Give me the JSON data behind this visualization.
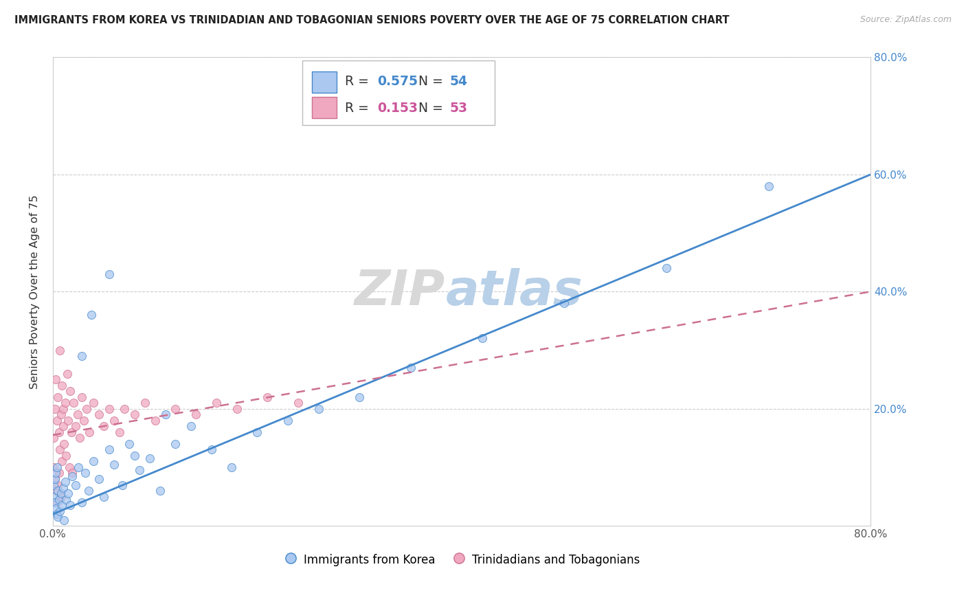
{
  "title": "IMMIGRANTS FROM KOREA VS TRINIDADIAN AND TOBAGONIAN SENIORS POVERTY OVER THE AGE OF 75 CORRELATION CHART",
  "source": "Source: ZipAtlas.com",
  "ylabel": "Seniors Poverty Over the Age of 75",
  "xlim": [
    0.0,
    0.8
  ],
  "ylim": [
    0.0,
    0.8
  ],
  "xticks": [
    0.0,
    0.2,
    0.4,
    0.6,
    0.8
  ],
  "yticks": [
    0.0,
    0.2,
    0.4,
    0.6,
    0.8
  ],
  "xticklabels": [
    "0.0%",
    "",
    "",
    "",
    "80.0%"
  ],
  "right_yticklabels": [
    "80.0%",
    "60.0%",
    "40.0%",
    "20.0%"
  ],
  "right_ytick_vals": [
    0.8,
    0.6,
    0.4,
    0.2
  ],
  "legend_labels": [
    "Immigrants from Korea",
    "Trinidadians and Tobagonians"
  ],
  "R_korea": 0.575,
  "N_korea": 54,
  "R_trinidad": 0.153,
  "N_trinidad": 53,
  "color_korea": "#aac8f0",
  "color_trinidad": "#f0a8c0",
  "line_color_korea": "#4488cc",
  "line_color_trinidad": "#cc7090",
  "korea_x": [
    0.001,
    0.001,
    0.002,
    0.002,
    0.003,
    0.003,
    0.004,
    0.004,
    0.005,
    0.005,
    0.006,
    0.007,
    0.008,
    0.009,
    0.01,
    0.011,
    0.012,
    0.013,
    0.015,
    0.017,
    0.019,
    0.022,
    0.025,
    0.028,
    0.032,
    0.035,
    0.04,
    0.045,
    0.05,
    0.055,
    0.06,
    0.068,
    0.075,
    0.085,
    0.095,
    0.105,
    0.12,
    0.135,
    0.155,
    0.175,
    0.2,
    0.23,
    0.26,
    0.3,
    0.35,
    0.42,
    0.5,
    0.6,
    0.7,
    0.028,
    0.038,
    0.055,
    0.08,
    0.11
  ],
  "korea_y": [
    0.05,
    0.07,
    0.04,
    0.08,
    0.03,
    0.09,
    0.02,
    0.1,
    0.015,
    0.06,
    0.045,
    0.025,
    0.055,
    0.035,
    0.065,
    0.01,
    0.075,
    0.045,
    0.055,
    0.035,
    0.085,
    0.07,
    0.1,
    0.04,
    0.09,
    0.06,
    0.11,
    0.08,
    0.05,
    0.13,
    0.105,
    0.07,
    0.14,
    0.095,
    0.115,
    0.06,
    0.14,
    0.17,
    0.13,
    0.1,
    0.16,
    0.18,
    0.2,
    0.22,
    0.27,
    0.32,
    0.38,
    0.44,
    0.58,
    0.29,
    0.36,
    0.43,
    0.12,
    0.19
  ],
  "trinidad_x": [
    0.001,
    0.001,
    0.002,
    0.002,
    0.003,
    0.003,
    0.004,
    0.004,
    0.005,
    0.005,
    0.006,
    0.006,
    0.007,
    0.007,
    0.008,
    0.008,
    0.009,
    0.009,
    0.01,
    0.01,
    0.011,
    0.012,
    0.013,
    0.014,
    0.015,
    0.016,
    0.017,
    0.018,
    0.019,
    0.02,
    0.022,
    0.024,
    0.026,
    0.028,
    0.03,
    0.033,
    0.036,
    0.04,
    0.045,
    0.05,
    0.055,
    0.06,
    0.065,
    0.07,
    0.08,
    0.09,
    0.1,
    0.12,
    0.14,
    0.16,
    0.18,
    0.21,
    0.24
  ],
  "trinidad_y": [
    0.1,
    0.15,
    0.08,
    0.2,
    0.06,
    0.25,
    0.04,
    0.18,
    0.22,
    0.07,
    0.16,
    0.09,
    0.3,
    0.13,
    0.19,
    0.05,
    0.24,
    0.11,
    0.2,
    0.17,
    0.14,
    0.21,
    0.12,
    0.26,
    0.18,
    0.1,
    0.23,
    0.16,
    0.09,
    0.21,
    0.17,
    0.19,
    0.15,
    0.22,
    0.18,
    0.2,
    0.16,
    0.21,
    0.19,
    0.17,
    0.2,
    0.18,
    0.16,
    0.2,
    0.19,
    0.21,
    0.18,
    0.2,
    0.19,
    0.21,
    0.2,
    0.22,
    0.21
  ],
  "korea_line_x0": 0.0,
  "korea_line_y0": 0.02,
  "korea_line_x1": 0.8,
  "korea_line_y1": 0.6,
  "trinidad_line_x0": 0.0,
  "trinidad_line_y0": 0.155,
  "trinidad_line_x1": 0.8,
  "trinidad_line_y1": 0.4
}
